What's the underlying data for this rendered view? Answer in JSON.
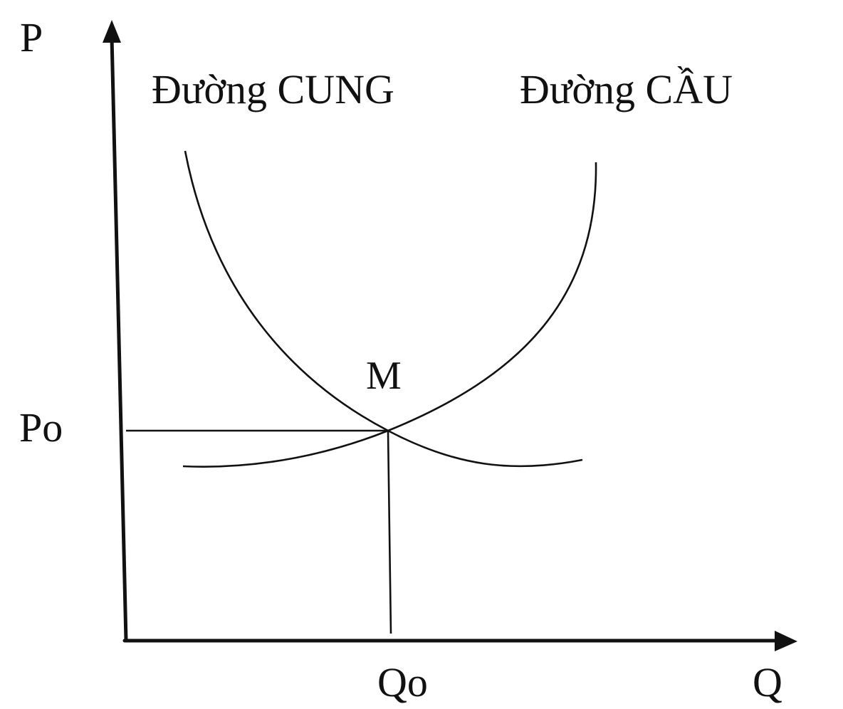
{
  "diagram": {
    "axis_labels": {
      "y": "P",
      "x": "Q"
    },
    "curve_labels": {
      "supply": "Đường CUNG",
      "demand": "Đường CẦU"
    },
    "equilibrium": {
      "point_label": "M",
      "price_label": "Po",
      "quantity_label": "Qo"
    },
    "colors": {
      "ink": "#111111",
      "background": "#ffffff"
    }
  }
}
